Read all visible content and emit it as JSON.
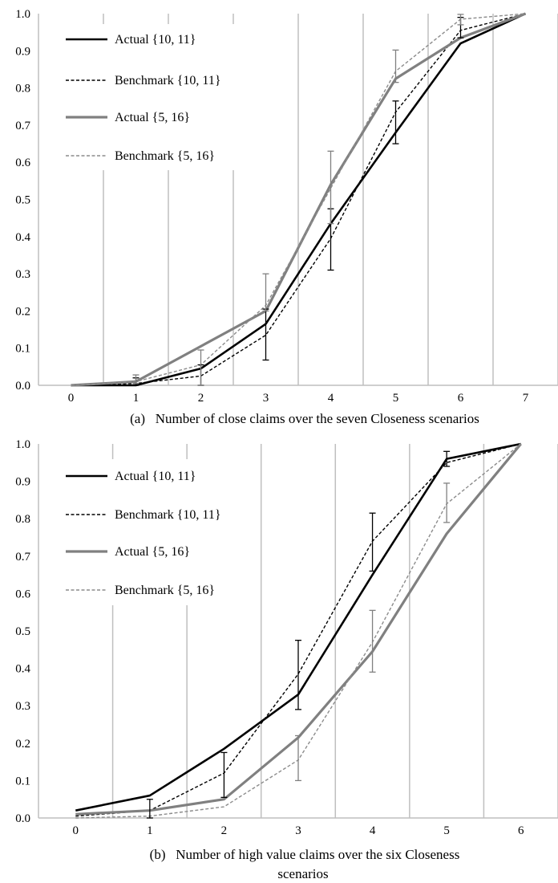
{
  "chart_data": [
    {
      "type": "line",
      "caption": "(a)   Number of close claims over the seven Closeness scenarios",
      "x": [
        0,
        1,
        2,
        3,
        4,
        5,
        6,
        7
      ],
      "x_tick_labels": [
        "0",
        "1",
        "2",
        "3",
        "4",
        "5",
        "6",
        "7"
      ],
      "y_tick_labels": [
        "0.0",
        "0.1",
        "0.2",
        "0.3",
        "0.4",
        "0.5",
        "0.6",
        "0.7",
        "0.8",
        "0.9",
        "1.0"
      ],
      "xlim": [
        -0.5,
        7.5
      ],
      "ylim": [
        0,
        1
      ],
      "grid": "vertical",
      "legend_position": "top-left",
      "series": [
        {
          "name": "Actual {10, 11}",
          "values": [
            0.0,
            0.0,
            0.045,
            0.165,
            0.435,
            0.68,
            0.92,
            1.0
          ],
          "color": "#000000",
          "style": "solid"
        },
        {
          "name": "Benchmark {10, 11}",
          "values": [
            0.0,
            0.005,
            0.025,
            0.135,
            0.395,
            0.735,
            0.955,
            1.0
          ],
          "color": "#000000",
          "style": "dashed"
        },
        {
          "name": "Actual {5, 16}",
          "values": [
            0.0,
            0.01,
            0.105,
            0.2,
            0.54,
            0.825,
            0.935,
            1.0
          ],
          "color": "#808080",
          "style": "solid"
        },
        {
          "name": "Benchmark {5, 16}",
          "values": [
            0.0,
            0.01,
            0.055,
            0.215,
            0.53,
            0.845,
            0.985,
            1.0
          ],
          "color": "#8c8c8c",
          "style": "dashed"
        }
      ],
      "error_bars": [
        {
          "x": 1,
          "low": 0.0,
          "high": 0.02,
          "color": "#000000"
        },
        {
          "x": 1,
          "low": 0.005,
          "high": 0.028,
          "color": "#808080"
        },
        {
          "x": 2,
          "low": 0.0,
          "high": 0.055,
          "color": "#000000"
        },
        {
          "x": 2,
          "low": 0.0,
          "high": 0.095,
          "color": "#808080"
        },
        {
          "x": 3,
          "low": 0.068,
          "high": 0.205,
          "color": "#000000"
        },
        {
          "x": 3,
          "low": 0.2,
          "high": 0.3,
          "color": "#808080"
        },
        {
          "x": 4,
          "low": 0.31,
          "high": 0.475,
          "color": "#000000"
        },
        {
          "x": 4,
          "low": 0.435,
          "high": 0.63,
          "color": "#808080"
        },
        {
          "x": 5,
          "low": 0.65,
          "high": 0.765,
          "color": "#000000"
        },
        {
          "x": 5,
          "low": 0.815,
          "high": 0.902,
          "color": "#808080"
        },
        {
          "x": 6,
          "low": 0.935,
          "high": 0.99,
          "color": "#000000"
        },
        {
          "x": 6,
          "low": 0.97,
          "high": 0.998,
          "color": "#808080"
        }
      ]
    },
    {
      "type": "line",
      "caption": "(b)   Number of high value claims over the six Closeness",
      "caption_line2": "scenarios",
      "x": [
        0,
        1,
        2,
        3,
        4,
        5,
        6
      ],
      "x_tick_labels": [
        "0",
        "1",
        "2",
        "3",
        "4",
        "5",
        "6"
      ],
      "y_tick_labels": [
        "0.0",
        "0.1",
        "0.2",
        "0.3",
        "0.4",
        "0.5",
        "0.6",
        "0.7",
        "0.8",
        "0.9",
        "1.0"
      ],
      "xlim": [
        -0.5,
        6.5
      ],
      "ylim": [
        0,
        1
      ],
      "grid": "vertical",
      "legend_position": "top-left",
      "series": [
        {
          "name": "Actual {10, 11}",
          "values": [
            0.02,
            0.06,
            0.185,
            0.33,
            0.65,
            0.96,
            1.0
          ],
          "color": "#000000",
          "style": "solid"
        },
        {
          "name": "Benchmark {10, 11}",
          "values": [
            0.005,
            0.02,
            0.12,
            0.385,
            0.74,
            0.95,
            1.0
          ],
          "color": "#000000",
          "style": "dashed"
        },
        {
          "name": "Actual {5, 16}",
          "values": [
            0.01,
            0.02,
            0.05,
            0.215,
            0.445,
            0.76,
            1.0
          ],
          "color": "#808080",
          "style": "solid"
        },
        {
          "name": "Benchmark {5, 16}",
          "values": [
            0.0,
            0.005,
            0.03,
            0.155,
            0.47,
            0.84,
            1.0
          ],
          "color": "#8c8c8c",
          "style": "dashed"
        }
      ],
      "error_bars": [
        {
          "x": 1,
          "low": 0.0,
          "high": 0.05,
          "color": "#000000"
        },
        {
          "x": 2,
          "low": 0.055,
          "high": 0.175,
          "color": "#000000"
        },
        {
          "x": 3,
          "low": 0.29,
          "high": 0.475,
          "color": "#000000"
        },
        {
          "x": 3,
          "low": 0.1,
          "high": 0.22,
          "color": "#808080"
        },
        {
          "x": 4,
          "low": 0.66,
          "high": 0.815,
          "color": "#000000"
        },
        {
          "x": 4,
          "low": 0.39,
          "high": 0.555,
          "color": "#808080"
        },
        {
          "x": 5,
          "low": 0.94,
          "high": 0.98,
          "color": "#000000"
        },
        {
          "x": 5,
          "low": 0.79,
          "high": 0.895,
          "color": "#808080"
        }
      ]
    }
  ]
}
